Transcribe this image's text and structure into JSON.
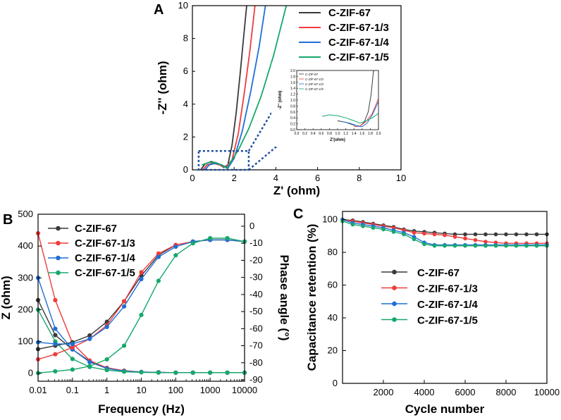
{
  "colors": {
    "black": "#3a3a3a",
    "red": "#f03c3c",
    "blue": "#1f6fd6",
    "green": "#16a86a",
    "inset_box": "#1f4fa0",
    "axis": "#000000"
  },
  "panel_letters": {
    "a": "A",
    "b": "B",
    "c": "C"
  },
  "chart_data": [
    {
      "id": "A",
      "type": "line",
      "xlabel": "Z' (ohm)",
      "ylabel": "-Z'' (ohm)",
      "xlim": [
        0,
        10
      ],
      "ylim": [
        0,
        10
      ],
      "xticks": [
        0,
        2,
        4,
        6,
        8,
        10
      ],
      "yticks": [
        0,
        2,
        4,
        6,
        8,
        10
      ],
      "legend": [
        "C-ZIF-67",
        "C-ZIF-67-1/3",
        "C-ZIF-67-1/4",
        "C-ZIF-67-1/5"
      ],
      "series": [
        {
          "name": "C-ZIF-67",
          "color_key": "black",
          "points": [
            [
              0.4,
              0.0
            ],
            [
              0.6,
              0.35
            ],
            [
              0.9,
              0.5
            ],
            [
              1.2,
              0.4
            ],
            [
              1.5,
              0.15
            ],
            [
              1.7,
              0.3
            ],
            [
              1.9,
              1.5
            ],
            [
              2.1,
              3.5
            ],
            [
              2.3,
              6.0
            ],
            [
              2.45,
              8.0
            ],
            [
              2.6,
              10.0
            ]
          ]
        },
        {
          "name": "C-ZIF-67-1/3",
          "color_key": "red",
          "points": [
            [
              0.5,
              0.0
            ],
            [
              0.7,
              0.3
            ],
            [
              1.0,
              0.4
            ],
            [
              1.3,
              0.3
            ],
            [
              1.6,
              0.15
            ],
            [
              1.9,
              0.6
            ],
            [
              2.2,
              2.2
            ],
            [
              2.5,
              4.8
            ],
            [
              2.75,
              7.2
            ],
            [
              3.0,
              10.0
            ]
          ]
        },
        {
          "name": "C-ZIF-67-1/4",
          "color_key": "blue",
          "points": [
            [
              0.6,
              0.0
            ],
            [
              0.8,
              0.3
            ],
            [
              1.1,
              0.4
            ],
            [
              1.4,
              0.3
            ],
            [
              1.7,
              0.1
            ],
            [
              2.0,
              0.7
            ],
            [
              2.4,
              2.4
            ],
            [
              2.8,
              4.8
            ],
            [
              3.2,
              7.5
            ],
            [
              3.5,
              10.0
            ]
          ]
        },
        {
          "name": "C-ZIF-67-1/5",
          "color_key": "green",
          "points": [
            [
              0.45,
              0.3
            ],
            [
              0.8,
              0.45
            ],
            [
              1.1,
              0.45
            ],
            [
              1.4,
              0.3
            ],
            [
              1.65,
              0.1
            ],
            [
              1.8,
              0.4
            ],
            [
              2.2,
              1.2
            ],
            [
              2.7,
              2.5
            ],
            [
              3.3,
              4.5
            ],
            [
              3.9,
              7.0
            ],
            [
              4.5,
              10.0
            ]
          ]
        }
      ],
      "inset": {
        "xlabel": "Z'(ohm)",
        "ylabel": "-Z'' (ohm)",
        "xlim": [
          0,
          2.0
        ],
        "ylim": [
          0,
          2.0
        ],
        "xticks": [
          0.0,
          0.2,
          0.4,
          0.6,
          0.8,
          1.0,
          1.2,
          1.4,
          1.6,
          1.8,
          2.0
        ],
        "xtick_labels": [
          "0.0",
          "0.2",
          "0.4",
          "0.6",
          "0.8",
          "1.0",
          "1.2",
          "1.4",
          "1.6",
          "1.8",
          "2.0"
        ],
        "yticks": [
          0.0,
          0.2,
          0.4,
          0.6,
          0.8,
          1.0,
          1.2,
          1.4,
          1.6,
          1.8,
          2.0
        ],
        "ytick_labels": [
          "0.0",
          "0.2",
          "0.4",
          "0.6",
          "0.8",
          "1.0",
          "1.2",
          "1.4",
          "1.6",
          "1.8",
          "2.0"
        ],
        "legend": [
          "C-ZIF-67",
          "C-ZIF-67-1/3",
          "C-ZIF-67-1/4",
          "C-ZIF-67-1/5"
        ],
        "series": [
          {
            "name": "C-ZIF-67",
            "color_key": "black",
            "points": [
              [
                1.0,
                0.3
              ],
              [
                1.2,
                0.25
              ],
              [
                1.4,
                0.15
              ],
              [
                1.55,
                0.12
              ],
              [
                1.65,
                0.25
              ],
              [
                1.75,
                0.6
              ],
              [
                1.82,
                1.2
              ],
              [
                1.88,
                2.0
              ]
            ]
          },
          {
            "name": "C-ZIF-67-1/3",
            "color_key": "red",
            "points": [
              [
                1.4,
                0.1
              ],
              [
                1.55,
                0.12
              ],
              [
                1.7,
                0.28
              ],
              [
                1.85,
                0.55
              ],
              [
                2.0,
                1.05
              ]
            ]
          },
          {
            "name": "C-ZIF-67-1/4",
            "color_key": "blue",
            "points": [
              [
                1.1,
                0.28
              ],
              [
                1.3,
                0.22
              ],
              [
                1.5,
                0.12
              ],
              [
                1.6,
                0.1
              ],
              [
                1.72,
                0.22
              ],
              [
                1.85,
                0.5
              ],
              [
                2.0,
                0.95
              ]
            ]
          },
          {
            "name": "C-ZIF-67-1/5",
            "color_key": "green",
            "points": [
              [
                0.62,
                0.45
              ],
              [
                0.8,
                0.5
              ],
              [
                1.0,
                0.47
              ],
              [
                1.2,
                0.4
              ],
              [
                1.4,
                0.3
              ],
              [
                1.55,
                0.22
              ],
              [
                1.7,
                0.3
              ],
              [
                1.85,
                0.4
              ],
              [
                2.0,
                0.55
              ]
            ]
          }
        ]
      }
    },
    {
      "id": "B",
      "type": "line",
      "xlabel": "Frequency (Hz)",
      "ylabel": "Z (ohm)",
      "ylabel_right": "Phase angle (°)",
      "xscale": "log",
      "xlim": [
        0.01,
        10000
      ],
      "xticks": [
        0.01,
        0.1,
        1,
        10,
        100,
        1000,
        10000
      ],
      "xtick_labels": [
        "0.01",
        "0.1",
        "1",
        "10",
        "100",
        "1000",
        "10000"
      ],
      "ylim": [
        -25,
        500
      ],
      "yticks": [
        0,
        100,
        200,
        300,
        400,
        500
      ],
      "yticks_right": [
        0,
        -10,
        -20,
        -30,
        -40,
        -50,
        -60,
        -70,
        -80,
        -90
      ],
      "yright_lim": [
        -90,
        0
      ],
      "legend": [
        "C-ZIF-67",
        "C-ZIF-67-1/3",
        "C-ZIF-67-1/4",
        "C-ZIF-67-1/5"
      ],
      "series": [
        {
          "name": "C-ZIF-67 |Z|",
          "color_key": "black",
          "logx": [
            -2.0,
            -1.5,
            -1.0,
            -0.5,
            0.0,
            0.5,
            1.0,
            1.5,
            2.0,
            2.5,
            3.0,
            3.5,
            4.0
          ],
          "values": [
            230,
            120,
            75,
            38,
            17,
            8,
            4,
            3,
            2,
            2,
            2,
            2,
            2
          ]
        },
        {
          "name": "C-ZIF-67-1/3 |Z|",
          "color_key": "red",
          "logx": [
            -2.0,
            -1.5,
            -1.0,
            -0.5,
            0.0,
            0.5,
            1.0,
            1.5,
            2.0,
            2.5,
            3.0,
            3.5,
            4.0
          ],
          "values": [
            440,
            230,
            95,
            40,
            17,
            8,
            4,
            3,
            2,
            2,
            2,
            2,
            2
          ]
        },
        {
          "name": "C-ZIF-67-1/4 |Z|",
          "color_key": "blue",
          "logx": [
            -2.0,
            -1.5,
            -1.0,
            -0.5,
            0.0,
            0.5,
            1.0,
            1.5,
            2.0,
            2.5,
            3.0,
            3.5,
            4.0
          ],
          "values": [
            300,
            140,
            75,
            35,
            15,
            7,
            4,
            3,
            2,
            2,
            2,
            2,
            2
          ]
        },
        {
          "name": "C-ZIF-67-1/5 |Z|",
          "color_key": "green",
          "logx": [
            -2.0,
            -1.5,
            -1.0,
            -0.5,
            0.0,
            0.5,
            1.0,
            1.5,
            2.0,
            2.5,
            3.0,
            3.5,
            4.0
          ],
          "values": [
            200,
            100,
            45,
            20,
            10,
            5,
            3,
            2,
            2,
            2,
            2,
            2,
            2
          ]
        },
        {
          "name": "C-ZIF-67 phase",
          "color_key": "black",
          "axis": "right",
          "logx": [
            -2.0,
            -1.5,
            -1.0,
            -0.5,
            0.0,
            0.5,
            1.0,
            1.5,
            2.0,
            2.5,
            3.0,
            3.5,
            4.0
          ],
          "values": [
            -72,
            -70,
            -68,
            -64,
            -56,
            -44,
            -29,
            -17,
            -11,
            -9,
            -8,
            -8,
            -9
          ]
        },
        {
          "name": "C-ZIF-67-1/3 phase",
          "color_key": "red",
          "axis": "right",
          "logx": [
            -2.0,
            -1.5,
            -1.0,
            -0.5,
            0.0,
            0.5,
            1.0,
            1.5,
            2.0,
            2.5,
            3.0,
            3.5,
            4.0
          ],
          "values": [
            -78,
            -75,
            -71,
            -66,
            -58,
            -44,
            -27,
            -16,
            -11,
            -9,
            -8,
            -8,
            -9
          ]
        },
        {
          "name": "C-ZIF-67-1/4 phase",
          "color_key": "blue",
          "axis": "right",
          "logx": [
            -2.0,
            -1.5,
            -1.0,
            -0.5,
            0.0,
            0.5,
            1.0,
            1.5,
            2.0,
            2.5,
            3.0,
            3.5,
            4.0
          ],
          "values": [
            -68,
            -69,
            -69,
            -66,
            -59,
            -47,
            -31,
            -18,
            -12,
            -9,
            -8,
            -8,
            -9
          ]
        },
        {
          "name": "C-ZIF-67-1/5 phase",
          "color_key": "green",
          "axis": "right",
          "logx": [
            -2.0,
            -1.5,
            -1.0,
            -0.5,
            0.0,
            0.5,
            1.0,
            1.5,
            2.0,
            2.5,
            3.0,
            3.5,
            4.0
          ],
          "values": [
            -86,
            -85,
            -84,
            -82,
            -78,
            -70,
            -52,
            -32,
            -17,
            -10,
            -7,
            -7,
            -9
          ]
        }
      ]
    },
    {
      "id": "C",
      "type": "line",
      "xlabel": "Cycle number",
      "ylabel": "Capacitance retention (%)",
      "xlim": [
        0,
        10000
      ],
      "ylim": [
        0,
        105
      ],
      "xticks": [
        2000,
        4000,
        6000,
        8000,
        10000
      ],
      "yticks": [
        0,
        20,
        40,
        60,
        80,
        100
      ],
      "legend": [
        "C-ZIF-67",
        "C-ZIF-67-1/3",
        "C-ZIF-67-1/4",
        "C-ZIF-67-1/5"
      ],
      "series": [
        {
          "name": "C-ZIF-67",
          "color_key": "black",
          "x": [
            0,
            500,
            1000,
            1500,
            2000,
            2500,
            3000,
            3500,
            4000,
            4500,
            5000,
            5500,
            6000,
            6500,
            7000,
            7500,
            8000,
            8500,
            9000,
            9500,
            10000
          ],
          "values": [
            100,
            99.5,
            98.5,
            97.5,
            96.5,
            95.5,
            94,
            93,
            92.5,
            92,
            91.5,
            91,
            91,
            91,
            91,
            91,
            91,
            91,
            91,
            91,
            91
          ]
        },
        {
          "name": "C-ZIF-67-1/3",
          "color_key": "red",
          "x": [
            0,
            500,
            1000,
            1500,
            2000,
            2500,
            3000,
            3500,
            4000,
            4500,
            5000,
            5500,
            6000,
            6500,
            7000,
            7500,
            8000,
            8500,
            9000,
            9500,
            10000
          ],
          "values": [
            100,
            99,
            98,
            97,
            96,
            95,
            93.5,
            92,
            91.5,
            91,
            90.5,
            89.5,
            88.5,
            87.5,
            86.5,
            86,
            85.5,
            85.5,
            85.5,
            85.5,
            85.5
          ]
        },
        {
          "name": "C-ZIF-67-1/4",
          "color_key": "blue",
          "x": [
            0,
            500,
            1000,
            1500,
            2000,
            2500,
            3000,
            3500,
            4000,
            4500,
            5000,
            5500,
            6000,
            6500,
            7000,
            7500,
            8000,
            8500,
            9000,
            9500,
            10000
          ],
          "values": [
            100,
            98,
            97,
            96,
            95,
            93.5,
            92,
            89.5,
            86,
            84.5,
            84.5,
            84.5,
            84.5,
            84.5,
            84.5,
            84.5,
            84.5,
            84.5,
            84.5,
            84.5,
            84.5
          ]
        },
        {
          "name": "C-ZIF-67-1/5",
          "color_key": "green",
          "x": [
            0,
            500,
            1000,
            1500,
            2000,
            2500,
            3000,
            3500,
            4000,
            4500,
            5000,
            5500,
            6000,
            6500,
            7000,
            7500,
            8000,
            8500,
            9000,
            9500,
            10000
          ],
          "values": [
            99,
            97,
            96,
            95,
            94,
            92.5,
            91,
            88,
            85,
            84,
            84,
            84,
            84,
            84,
            84,
            84,
            84,
            84,
            84,
            84,
            84
          ]
        }
      ]
    }
  ]
}
